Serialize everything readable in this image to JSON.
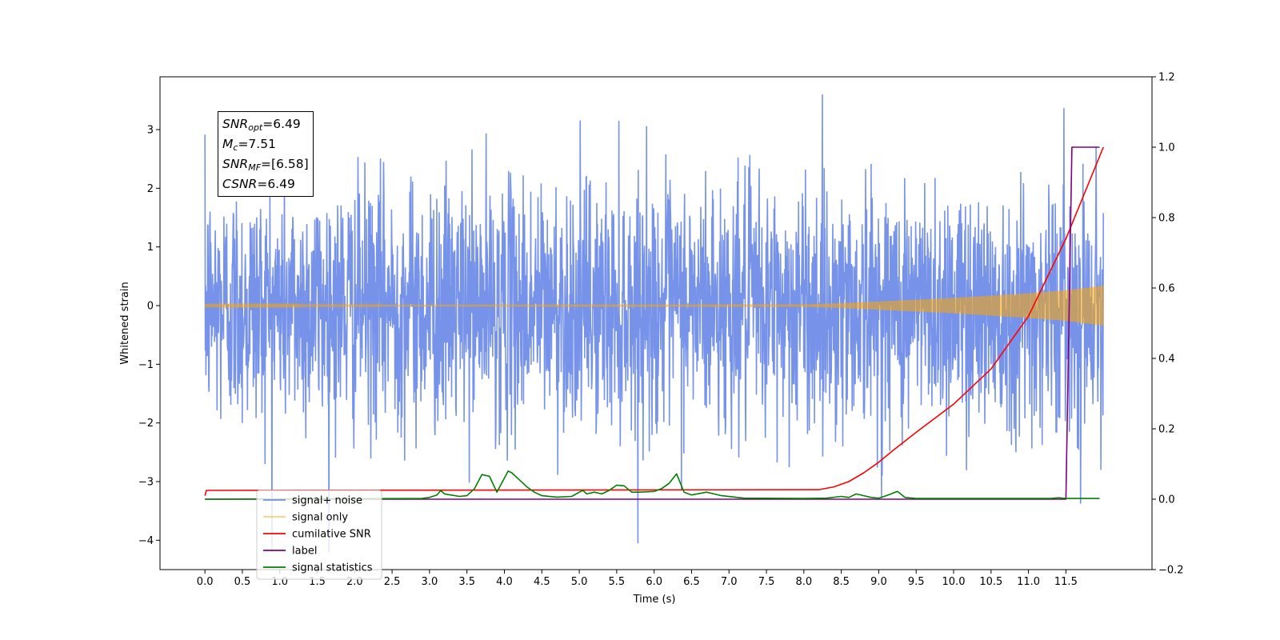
{
  "chart_data": {
    "type": "line",
    "xlabel": "Time (s)",
    "ylabel": "Whitened strain",
    "ylabel_right": "",
    "xlim": [
      -0.6,
      12.65
    ],
    "ylim": [
      -4.5,
      3.9
    ],
    "ylim_right": [
      -0.2,
      1.2
    ],
    "x_ticks": [
      "0.0",
      "0.5",
      "1.0",
      "1.5",
      "2.0",
      "2.5",
      "3.0",
      "3.5",
      "4.0",
      "4.5",
      "5.0",
      "5.5",
      "6.0",
      "6.5",
      "7.0",
      "7.5",
      "8.0",
      "8.5",
      "9.0",
      "9.5",
      "10.0",
      "10.5",
      "11.0",
      "11.5"
    ],
    "y_ticks_left": [
      "3",
      "2",
      "1",
      "0",
      "−1",
      "−2",
      "−3",
      "−4"
    ],
    "y_ticks_right": [
      "1.2",
      "1.0",
      "0.8",
      "0.6",
      "0.4",
      "0.2",
      "0.0",
      "−0.2"
    ],
    "legend_placement": "lower-left",
    "annotation": {
      "snr_opt": {
        "label": "SNR",
        "sub": "opt",
        "value": "=6.49"
      },
      "mc": {
        "label": "M",
        "sub": "c",
        "value": "=7.51"
      },
      "snr_mf": {
        "label": "SNR",
        "sub": "MF",
        "value": "=[6.58]"
      },
      "csnr": {
        "label": "CSNR",
        "sub": "",
        "value": "=6.49"
      }
    },
    "series": [
      {
        "name": "signal+ noise",
        "axis": "left",
        "color": "#4169e1",
        "kind": "gaussian-noise",
        "x_range": [
          0.0,
          12.0
        ],
        "sigma": 1.0
      },
      {
        "name": "signal only",
        "axis": "left",
        "color": "#ffa500",
        "kind": "chirp",
        "envelope": {
          "x": [
            0.0,
            8.0,
            8.5,
            9.0,
            10.0,
            11.0,
            11.5,
            12.0
          ],
          "y": [
            0.01,
            0.02,
            0.04,
            0.07,
            0.13,
            0.21,
            0.26,
            0.34
          ]
        }
      },
      {
        "name": "cumilative SNR",
        "axis": "right",
        "color": "#ff0000",
        "x": [
          0.0,
          0.02,
          8.2,
          8.4,
          8.6,
          8.8,
          9.0,
          9.2,
          9.5,
          10.0,
          10.5,
          11.0,
          11.5,
          12.0
        ],
        "y": [
          0.01,
          0.025,
          0.027,
          0.035,
          0.05,
          0.075,
          0.105,
          0.14,
          0.19,
          0.27,
          0.37,
          0.52,
          0.74,
          1.0
        ]
      },
      {
        "name": "label",
        "axis": "right",
        "color": "#800080",
        "x": [
          0.0,
          11.5,
          11.58,
          11.95
        ],
        "y": [
          0.0,
          0.0,
          1.0,
          1.0
        ]
      },
      {
        "name": "signal statistics",
        "axis": "right",
        "color": "#008000",
        "x": [
          0.0,
          2.9,
          3.0,
          3.1,
          3.15,
          3.2,
          3.4,
          3.5,
          3.6,
          3.7,
          3.8,
          3.9,
          3.95,
          4.0,
          4.05,
          4.1,
          4.2,
          4.3,
          4.4,
          4.5,
          4.7,
          4.9,
          5.0,
          5.05,
          5.1,
          5.2,
          5.3,
          5.4,
          5.5,
          5.6,
          5.7,
          5.8,
          6.0,
          6.1,
          6.2,
          6.3,
          6.4,
          6.5,
          6.7,
          6.9,
          7.2,
          8.0,
          8.3,
          8.5,
          8.6,
          8.7,
          8.8,
          8.9,
          9.0,
          9.1,
          9.25,
          9.35,
          9.5,
          11.3,
          11.4,
          11.5,
          11.95
        ],
        "y": [
          0.0,
          0.002,
          0.005,
          0.012,
          0.025,
          0.015,
          0.008,
          0.01,
          0.03,
          0.07,
          0.065,
          0.02,
          0.04,
          0.06,
          0.08,
          0.075,
          0.055,
          0.035,
          0.02,
          0.01,
          0.006,
          0.008,
          0.02,
          0.025,
          0.015,
          0.02,
          0.015,
          0.025,
          0.04,
          0.038,
          0.02,
          0.02,
          0.022,
          0.03,
          0.045,
          0.072,
          0.02,
          0.012,
          0.02,
          0.01,
          0.003,
          0.002,
          0.003,
          0.008,
          0.005,
          0.015,
          0.01,
          0.005,
          0.003,
          0.01,
          0.022,
          0.005,
          0.002,
          0.002,
          0.004,
          0.002,
          0.002
        ]
      }
    ]
  }
}
